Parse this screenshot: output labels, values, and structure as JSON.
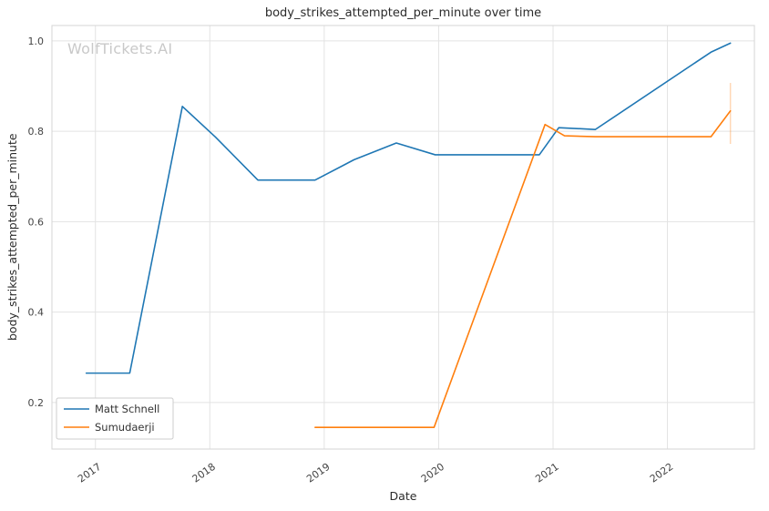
{
  "chart_data": {
    "type": "line",
    "title": "body_strikes_attempted_per_minute over time",
    "xlabel": "Date",
    "ylabel": "body_strikes_attempted_per_minute",
    "watermark": "WolfTickets.AI",
    "grid": true,
    "legend_position": "lower-left",
    "xlim": [
      2016.62,
      2022.76
    ],
    "ylim": [
      0.097,
      1.034
    ],
    "x_tick_values": [
      2017,
      2018,
      2019,
      2020,
      2021,
      2022
    ],
    "x_tick_labels": [
      "2017",
      "2018",
      "2019",
      "2020",
      "2021",
      "2022"
    ],
    "y_tick_values": [
      0.2,
      0.4,
      0.6,
      0.8,
      1.0
    ],
    "y_tick_labels": [
      "0.2",
      "0.4",
      "0.6",
      "0.8",
      "1.0"
    ],
    "colors": {
      "grid": "#e3e3e3",
      "spine": "#d5d5d5",
      "tick_label": "#444444",
      "title": "#2b2b2b",
      "watermark": "#c9c9c9",
      "legend_border": "#cccccc",
      "legend_text": "#333333"
    },
    "series": [
      {
        "name": "Matt Schnell",
        "color": "#1f77b4",
        "x": [
          2016.92,
          2017.3,
          2017.76,
          2018.05,
          2018.42,
          2018.92,
          2019.26,
          2019.63,
          2019.97,
          2020.88,
          2021.05,
          2021.37,
          2022.38,
          2022.55
        ],
        "y": [
          0.265,
          0.265,
          0.855,
          0.787,
          0.692,
          0.692,
          0.737,
          0.774,
          0.748,
          0.748,
          0.808,
          0.804,
          0.975,
          0.995
        ]
      },
      {
        "name": "Sumudaerji",
        "color": "#ff7f0e",
        "x": [
          2018.92,
          2019.96,
          2020.93,
          2021.1,
          2021.37,
          2022.38,
          2022.55
        ],
        "y": [
          0.145,
          0.145,
          0.815,
          0.79,
          0.788,
          0.788,
          0.845
        ],
        "error_bar": {
          "x": 2022.55,
          "y_low": 0.772,
          "y_high": 0.907
        }
      }
    ]
  }
}
